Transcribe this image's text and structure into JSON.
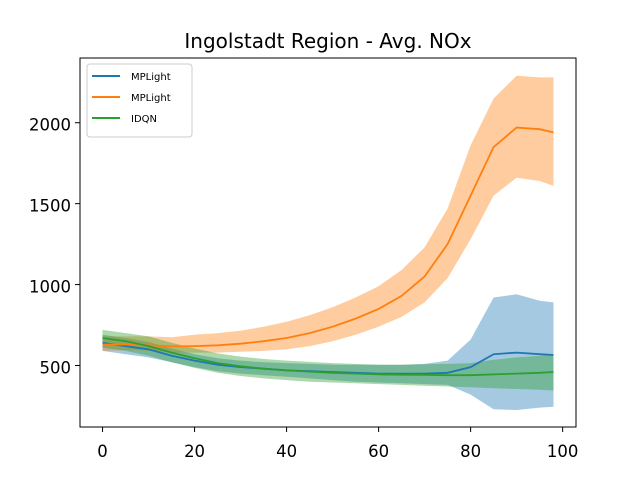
{
  "chart_data": {
    "type": "line",
    "title": "Ingolstadt Region - Avg. NOx",
    "xlabel": "",
    "ylabel": "",
    "xlim": [
      -4.9,
      102.9
    ],
    "ylim": [
      120,
      2400
    ],
    "x_ticks": [
      0,
      20,
      40,
      60,
      80,
      100
    ],
    "y_ticks": [
      500,
      1000,
      1500,
      2000
    ],
    "grid": false,
    "legend_position": "upper-left",
    "x": [
      0,
      5,
      10,
      15,
      20,
      25,
      30,
      35,
      40,
      45,
      50,
      55,
      60,
      65,
      70,
      75,
      80,
      85,
      90,
      95,
      98
    ],
    "series": [
      {
        "name": "MPLight",
        "color": "#1f77b4",
        "mean": [
          640,
          620,
          600,
          560,
          530,
          505,
          490,
          480,
          470,
          465,
          460,
          455,
          450,
          450,
          450,
          455,
          490,
          570,
          580,
          570,
          565
        ],
        "lower": [
          590,
          570,
          550,
          520,
          490,
          465,
          450,
          440,
          430,
          420,
          410,
          400,
          395,
          390,
          385,
          380,
          320,
          230,
          225,
          240,
          245
        ],
        "upper": [
          690,
          670,
          645,
          605,
          570,
          545,
          530,
          520,
          515,
          510,
          505,
          505,
          505,
          505,
          510,
          530,
          660,
          920,
          940,
          900,
          890
        ]
      },
      {
        "name": "MPLight",
        "color": "#ff7f0e",
        "mean": [
          630,
          630,
          625,
          618,
          620,
          625,
          635,
          650,
          670,
          700,
          740,
          790,
          850,
          930,
          1050,
          1250,
          1550,
          1850,
          1970,
          1960,
          1940
        ],
        "lower": [
          590,
          595,
          590,
          580,
          580,
          580,
          585,
          590,
          600,
          620,
          650,
          690,
          740,
          800,
          890,
          1040,
          1280,
          1550,
          1660,
          1640,
          1610
        ],
        "upper": [
          680,
          680,
          680,
          675,
          690,
          700,
          715,
          740,
          770,
          810,
          860,
          920,
          990,
          1090,
          1230,
          1470,
          1860,
          2150,
          2290,
          2280,
          2280
        ]
      },
      {
        "name": "IDQN",
        "color": "#2ca02c",
        "mean": [
          670,
          650,
          620,
          580,
          545,
          515,
          495,
          480,
          470,
          462,
          455,
          450,
          445,
          443,
          442,
          440,
          440,
          445,
          450,
          455,
          460
        ],
        "lower": [
          610,
          590,
          560,
          520,
          485,
          455,
          435,
          420,
          410,
          400,
          395,
          390,
          385,
          380,
          375,
          370,
          365,
          360,
          355,
          350,
          345
        ],
        "upper": [
          720,
          700,
          680,
          640,
          605,
          575,
          555,
          540,
          530,
          522,
          515,
          510,
          505,
          505,
          508,
          510,
          515,
          535,
          550,
          560,
          570
        ]
      }
    ]
  }
}
